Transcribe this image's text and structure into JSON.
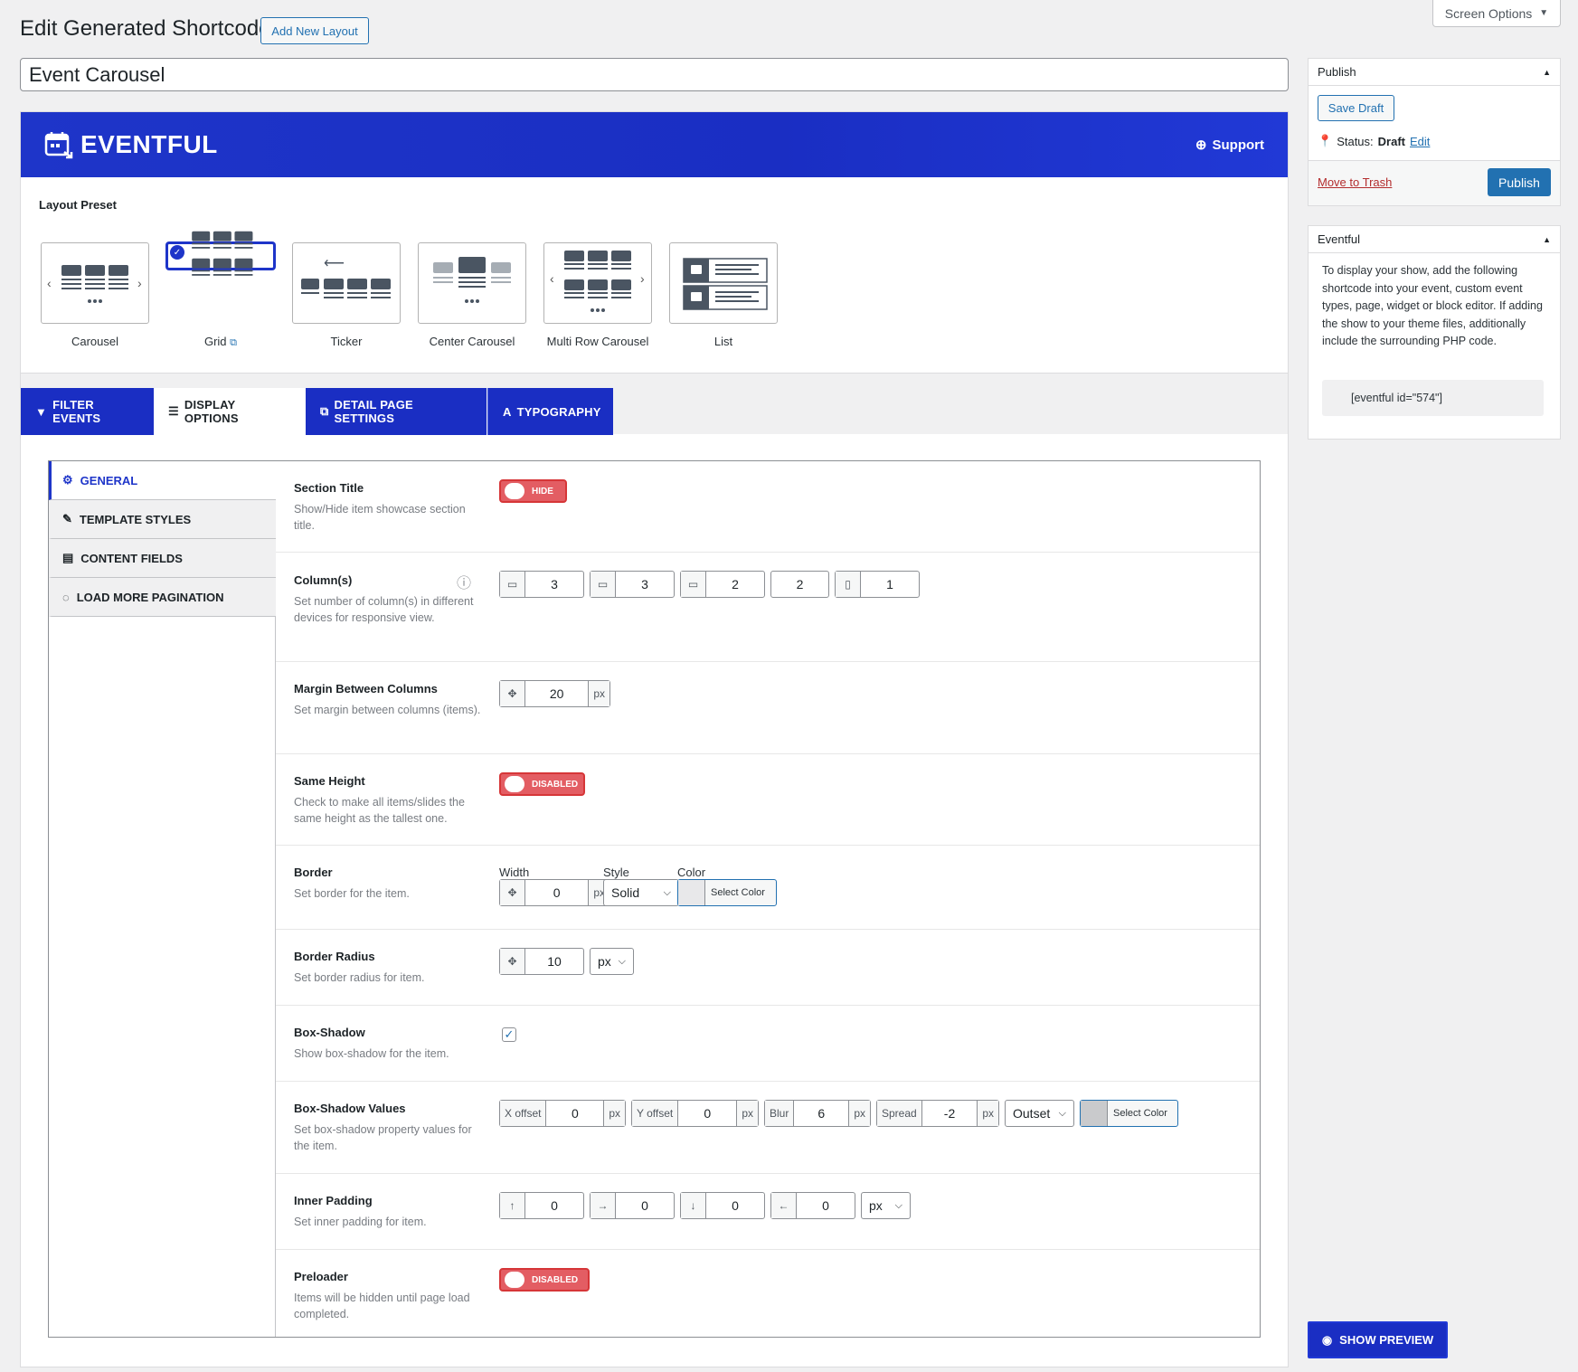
{
  "screen_options": {
    "label": "Screen Options"
  },
  "page": {
    "title": "Edit Generated Shortcode",
    "add_new_label": "Add New Layout",
    "post_title": "Event Carousel"
  },
  "banner": {
    "logo_text": "EVENTFUL",
    "support_label": "Support"
  },
  "layout_preset": {
    "label": "Layout Preset",
    "selected": "Grid",
    "items": [
      {
        "label": "Carousel"
      },
      {
        "label": "Grid"
      },
      {
        "label": "Ticker"
      },
      {
        "label": "Center Carousel"
      },
      {
        "label": "Multi Row Carousel"
      },
      {
        "label": "List"
      }
    ]
  },
  "tabs": [
    {
      "label": "FILTER EVENTS",
      "icon": "filter-icon"
    },
    {
      "label": "DISPLAY OPTIONS",
      "icon": "list-icon",
      "active": true
    },
    {
      "label": "DETAIL PAGE SETTINGS",
      "icon": "external-link-icon"
    },
    {
      "label": "TYPOGRAPHY",
      "icon": "font-icon"
    }
  ],
  "side_nav": [
    {
      "label": "GENERAL",
      "active": true
    },
    {
      "label": "TEMPLATE STYLES"
    },
    {
      "label": "CONTENT FIELDS"
    },
    {
      "label": "LOAD MORE PAGINATION"
    }
  ],
  "settings": {
    "section_title": {
      "title": "Section Title",
      "desc": "Show/Hide item showcase section title.",
      "toggle": "HIDE"
    },
    "columns": {
      "title": "Column(s)",
      "desc": "Set number of column(s) in different devices for responsive view.",
      "values": [
        "3",
        "3",
        "2",
        "2",
        "1"
      ]
    },
    "margin": {
      "title": "Margin Between Columns",
      "desc": "Set margin between columns (items).",
      "value": "20",
      "unit": "px"
    },
    "same_height": {
      "title": "Same Height",
      "desc": "Check to make all items/slides the same height as the tallest one.",
      "toggle": "DISABLED"
    },
    "border": {
      "title": "Border",
      "desc": "Set border for the item.",
      "width_label": "Width",
      "style_label": "Style",
      "color_label": "Color",
      "width": "0",
      "unit": "px",
      "style": "Solid",
      "color_button": "Select Color"
    },
    "border_radius": {
      "title": "Border Radius",
      "desc": "Set border radius for item.",
      "value": "10",
      "unit": "px"
    },
    "box_shadow": {
      "title": "Box-Shadow",
      "desc": "Show box-shadow for the item.",
      "checked": true
    },
    "box_shadow_values": {
      "title": "Box-Shadow Values",
      "desc": "Set box-shadow property values for the item.",
      "x_label": "X offset",
      "x": "0",
      "y_label": "Y offset",
      "y": "0",
      "blur_label": "Blur",
      "blur": "6",
      "spread_label": "Spread",
      "spread": "-2",
      "unit": "px",
      "type": "Outset",
      "color_button": "Select Color"
    },
    "inner_padding": {
      "title": "Inner Padding",
      "desc": "Set inner padding for item.",
      "values": [
        "0",
        "0",
        "0",
        "0"
      ],
      "unit": "px",
      "arrows": [
        "↑",
        "→",
        "↓",
        "←"
      ]
    },
    "preloader": {
      "title": "Preloader",
      "desc": "Items will be hidden until page load completed.",
      "toggle": "DISABLED"
    }
  },
  "publish_box": {
    "title": "Publish",
    "save_draft": "Save Draft",
    "status_label": "Status:",
    "status_value": "Draft",
    "status_edit": "Edit",
    "trash": "Move to Trash",
    "publish": "Publish"
  },
  "eventful_box": {
    "title": "Eventful",
    "text": "To display your show, add the following shortcode into your event, custom event types, page, widget or block editor. If adding the show to your theme files, additionally include the surrounding PHP code.",
    "shortcode": "[eventful id=\"574\"]"
  },
  "show_preview": {
    "label": "SHOW PREVIEW"
  },
  "colors": {
    "brand": "#1a2ec3",
    "toggle_off": "#e35d63",
    "wp_blue": "#2271b1"
  }
}
